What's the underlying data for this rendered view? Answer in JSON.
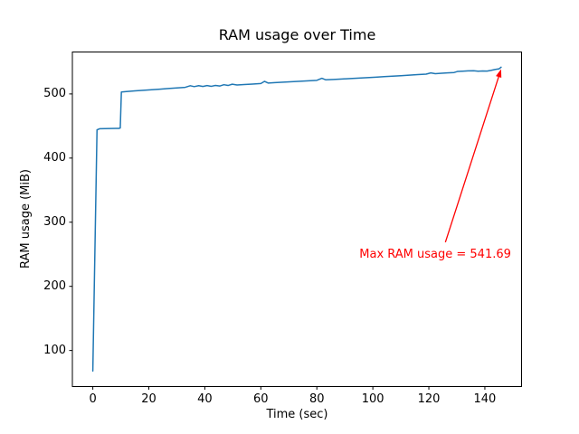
{
  "chart_data": {
    "type": "line",
    "title": "RAM usage over Time",
    "xlabel": "Time (sec)",
    "ylabel": "RAM usage (MiB)",
    "xlim": [
      -7.3,
      153.1
    ],
    "ylim": [
      43.8,
      565.4
    ],
    "xticks": [
      0,
      20,
      40,
      60,
      80,
      100,
      120,
      140
    ],
    "yticks": [
      100,
      200,
      300,
      400,
      500
    ],
    "grid": false,
    "legend": "none",
    "line_color": "#1f77b4",
    "spine_color": "#000000",
    "series": [
      {
        "name": "RAM usage",
        "x": [
          0,
          1.5,
          2.5,
          9.3,
          9.8,
          10.2,
          12,
          15,
          18,
          21,
          24,
          27,
          30,
          33,
          34.8,
          36.2,
          37.8,
          39.3,
          40.8,
          42.3,
          43.8,
          45.3,
          46.8,
          48.3,
          49.8,
          51.5,
          54,
          57,
          60,
          61.3,
          62.6,
          65,
          68,
          71,
          74,
          77,
          80,
          81.8,
          83.2,
          86,
          89,
          92,
          95,
          98,
          101,
          104,
          107,
          110,
          113,
          116,
          119,
          120.7,
          122.3,
          124,
          126.5,
          129,
          130.2,
          132,
          134,
          136,
          137.6,
          139.2,
          140.8,
          142.3,
          143.8,
          145.1,
          145.8
        ],
        "y": [
          68,
          444,
          445.8,
          446.3,
          447,
          503,
          503.8,
          504.8,
          505.7,
          506.6,
          507.5,
          508.4,
          509.3,
          510.3,
          512.8,
          511.4,
          512.9,
          511.7,
          513.1,
          511.9,
          513.3,
          512.3,
          514.4,
          513.2,
          515.2,
          514,
          514.6,
          515.4,
          516.2,
          519.6,
          517,
          517.6,
          518.3,
          519,
          519.7,
          520.4,
          521.2,
          524.4,
          522,
          522.6,
          523.3,
          524,
          524.7,
          525.4,
          526.1,
          526.9,
          527.6,
          528.4,
          529.2,
          530.1,
          530.9,
          532.8,
          531.6,
          532.1,
          532.8,
          533.4,
          535,
          535.5,
          535.9,
          536.2,
          535.4,
          535.8,
          535.6,
          536.8,
          538.3,
          539.2,
          541.69
        ]
      }
    ],
    "max_value": 541.69,
    "annotation": {
      "text": "Max RAM usage = 541.69",
      "color": "#ff0000",
      "text_xy": [
        95.2,
        260
      ],
      "arrow_start_xy": [
        125.9,
        268.7
      ],
      "arrow_end_xy": [
        145.8,
        538.6
      ]
    }
  }
}
